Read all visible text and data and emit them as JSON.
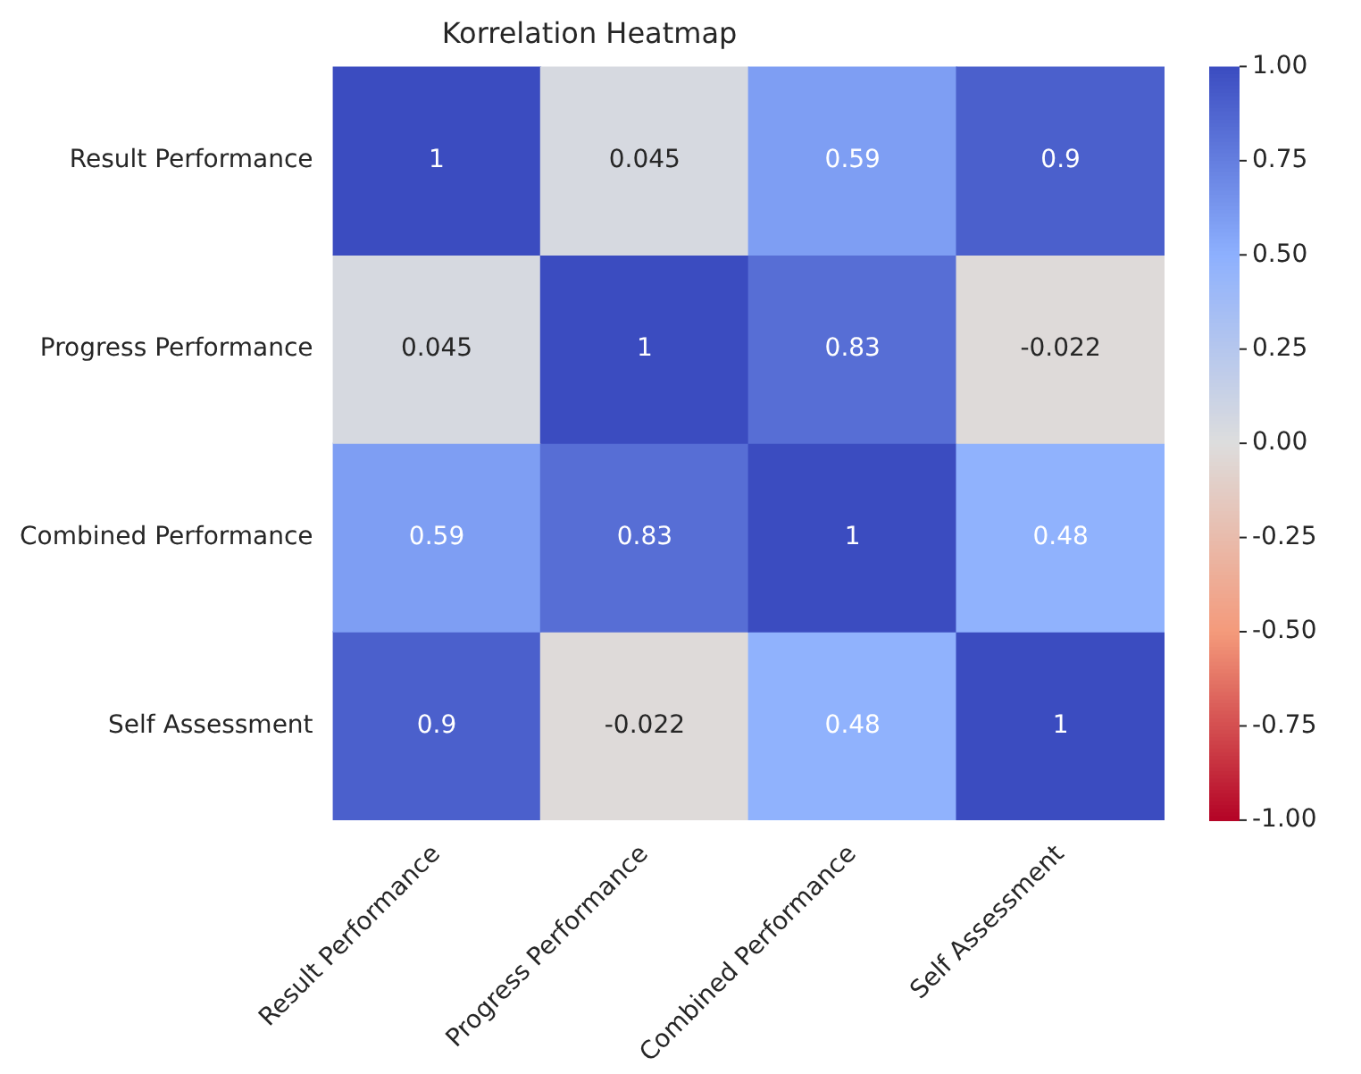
{
  "chart_data": {
    "type": "heatmap",
    "title": "Korrelation Heatmap",
    "categories": [
      "Result Performance",
      "Progress Performance",
      "Combined Performance",
      "Self Assessment"
    ],
    "y_categories": [
      "Result Performance",
      "Progress Performance",
      "Combined Performance",
      "Self Assessment"
    ],
    "cells": [
      [
        1,
        0.045,
        0.59,
        0.9
      ],
      [
        0.045,
        1,
        0.83,
        -0.022
      ],
      [
        0.59,
        0.83,
        1,
        0.48
      ],
      [
        0.9,
        -0.022,
        0.48,
        1
      ]
    ],
    "clim": [
      -1,
      1
    ],
    "cticks": [
      {
        "value": 1,
        "label": "1.00"
      },
      0.75,
      {
        "value": 0.5,
        "label": "0.50"
      },
      0.25,
      {
        "value": 0,
        "label": "0.00"
      },
      -0.25,
      {
        "value": -0.5,
        "label": "-0.50"
      },
      -0.75,
      {
        "value": -1,
        "label": "-1.00"
      }
    ],
    "data_labels": true
  }
}
